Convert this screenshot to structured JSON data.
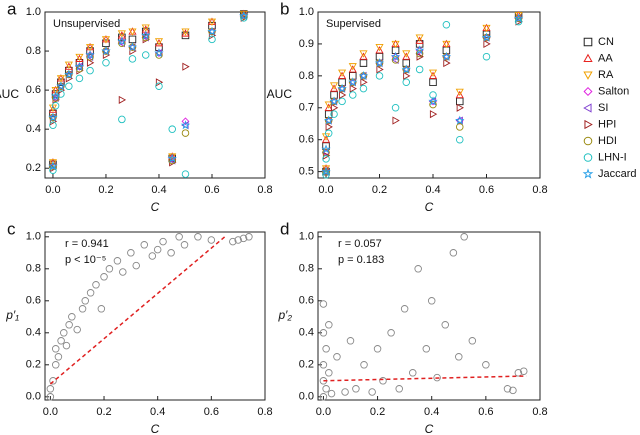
{
  "chart_data": [
    {
      "type": "scatter",
      "panel_label": "a",
      "annotations": [
        "Unsupervised"
      ],
      "xlabel": "C",
      "ylabel": "AUC",
      "xlim": [
        -0.03,
        0.8
      ],
      "ylim": [
        0.15,
        1.0
      ],
      "xticks": [
        {
          "value": 0,
          "label": "0.0"
        },
        0.2,
        0.4,
        0.6,
        0.8
      ],
      "yticks": [
        0.2,
        0.4,
        0.6,
        0.8,
        {
          "value": 1,
          "label": "1.0"
        }
      ],
      "x": [
        0.0,
        0.0,
        0.01,
        0.03,
        0.06,
        0.1,
        0.14,
        0.2,
        0.26,
        0.3,
        0.35,
        0.4,
        0.45,
        0.5,
        0.6,
        0.72
      ],
      "series": [
        {
          "color": "#222222",
          "marker": "square",
          "values": [
            0.22,
            0.48,
            0.58,
            0.64,
            0.7,
            0.74,
            0.8,
            0.84,
            0.87,
            0.86,
            0.9,
            0.82,
            0.25,
            0.88,
            0.93,
            0.99
          ]
        },
        {
          "color": "#e8231f",
          "marker": "triangle-up",
          "values": [
            0.23,
            0.5,
            0.6,
            0.66,
            0.72,
            0.76,
            0.82,
            0.86,
            0.88,
            0.9,
            0.91,
            0.84,
            0.26,
            0.89,
            0.95,
            0.99
          ]
        },
        {
          "color": "#f0a000",
          "marker": "triangle-down",
          "values": [
            0.23,
            0.51,
            0.6,
            0.66,
            0.73,
            0.77,
            0.82,
            0.86,
            0.89,
            0.9,
            0.92,
            0.85,
            0.26,
            0.9,
            0.95,
            0.99
          ]
        },
        {
          "color": "#e020e0",
          "marker": "diamond",
          "values": [
            0.21,
            0.46,
            0.56,
            0.62,
            0.68,
            0.72,
            0.78,
            0.8,
            0.85,
            0.82,
            0.88,
            0.79,
            0.25,
            0.44,
            0.9,
            0.98
          ]
        },
        {
          "color": "#8040d0",
          "marker": "triangle-left",
          "values": [
            0.21,
            0.46,
            0.56,
            0.62,
            0.68,
            0.72,
            0.77,
            0.8,
            0.84,
            0.82,
            0.87,
            0.79,
            0.24,
            0.42,
            0.9,
            0.98
          ]
        },
        {
          "color": "#a02020",
          "marker": "triangle-right",
          "values": [
            0.2,
            0.44,
            0.55,
            0.6,
            0.66,
            0.7,
            0.74,
            0.78,
            0.55,
            0.8,
            0.86,
            0.64,
            0.23,
            0.72,
            0.88,
            0.97
          ]
        },
        {
          "color": "#9a8a10",
          "marker": "circle",
          "values": [
            0.21,
            0.46,
            0.56,
            0.62,
            0.68,
            0.71,
            0.77,
            0.8,
            0.84,
            0.82,
            0.87,
            0.78,
            0.24,
            0.38,
            0.9,
            0.98
          ]
        },
        {
          "color": "#20c0c0",
          "marker": "circle",
          "values": [
            0.19,
            0.42,
            0.52,
            0.58,
            0.62,
            0.66,
            0.7,
            0.74,
            0.45,
            0.76,
            0.78,
            0.62,
            0.4,
            0.17,
            0.86,
            0.97
          ]
        },
        {
          "color": "#2aa0e8",
          "marker": "star",
          "values": [
            0.21,
            0.46,
            0.57,
            0.62,
            0.68,
            0.72,
            0.78,
            0.8,
            0.85,
            0.82,
            0.88,
            0.79,
            0.25,
            0.42,
            0.9,
            0.98
          ]
        }
      ]
    },
    {
      "type": "scatter",
      "panel_label": "b",
      "annotations": [
        "Supervised"
      ],
      "xlabel": "C",
      "ylabel": "AUC",
      "legend": "outside-right",
      "xlim": [
        -0.03,
        0.8
      ],
      "ylim": [
        0.48,
        1.0
      ],
      "xticks": [
        {
          "value": 0,
          "label": "0.0"
        },
        0.2,
        0.4,
        0.6,
        0.8
      ],
      "yticks": [
        0.5,
        0.6,
        0.7,
        0.8,
        0.9,
        {
          "value": 1,
          "label": "1.0"
        }
      ],
      "x": [
        0.0,
        0.0,
        0.01,
        0.03,
        0.06,
        0.1,
        0.14,
        0.2,
        0.26,
        0.3,
        0.35,
        0.4,
        0.45,
        0.5,
        0.6,
        0.72
      ],
      "series": [
        {
          "name": "CN",
          "color": "#222222",
          "marker": "square",
          "values": [
            0.5,
            0.58,
            0.68,
            0.74,
            0.78,
            0.8,
            0.84,
            0.86,
            0.88,
            0.84,
            0.9,
            0.78,
            0.88,
            0.72,
            0.93,
            0.99
          ]
        },
        {
          "name": "AA",
          "color": "#e8231f",
          "marker": "triangle-up",
          "values": [
            0.51,
            0.6,
            0.7,
            0.76,
            0.8,
            0.82,
            0.86,
            0.88,
            0.9,
            0.86,
            0.91,
            0.8,
            0.9,
            0.74,
            0.95,
            0.99
          ]
        },
        {
          "name": "RA",
          "color": "#f0a000",
          "marker": "triangle-down",
          "values": [
            0.51,
            0.61,
            0.71,
            0.77,
            0.81,
            0.83,
            0.87,
            0.89,
            0.9,
            0.87,
            0.92,
            0.81,
            0.9,
            0.75,
            0.95,
            0.99
          ]
        },
        {
          "name": "Salton",
          "color": "#e020e0",
          "marker": "diamond",
          "values": [
            0.5,
            0.56,
            0.66,
            0.72,
            0.76,
            0.78,
            0.8,
            0.84,
            0.86,
            0.82,
            0.88,
            0.72,
            0.86,
            0.66,
            0.92,
            0.98
          ]
        },
        {
          "name": "SI",
          "color": "#8040d0",
          "marker": "triangle-left",
          "values": [
            0.5,
            0.56,
            0.66,
            0.72,
            0.76,
            0.78,
            0.8,
            0.84,
            0.85,
            0.82,
            0.87,
            0.72,
            0.86,
            0.66,
            0.92,
            0.98
          ]
        },
        {
          "name": "HPI",
          "color": "#a02020",
          "marker": "triangle-right",
          "values": [
            0.5,
            0.55,
            0.64,
            0.7,
            0.74,
            0.76,
            0.78,
            0.82,
            0.66,
            0.8,
            0.86,
            0.68,
            0.84,
            0.7,
            0.9,
            0.97
          ]
        },
        {
          "name": "HDI",
          "color": "#9a8a10",
          "marker": "circle",
          "values": [
            0.5,
            0.56,
            0.66,
            0.72,
            0.76,
            0.78,
            0.8,
            0.84,
            0.85,
            0.82,
            0.87,
            0.71,
            0.86,
            0.64,
            0.92,
            0.98
          ]
        },
        {
          "name": "LHN-I",
          "color": "#20c0c0",
          "marker": "circle",
          "values": [
            0.49,
            0.54,
            0.62,
            0.68,
            0.72,
            0.74,
            0.76,
            0.8,
            0.7,
            0.78,
            0.82,
            0.74,
            0.96,
            0.6,
            0.86,
            0.97
          ]
        },
        {
          "name": "Jaccard",
          "color": "#2aa0e8",
          "marker": "star",
          "values": [
            0.5,
            0.57,
            0.66,
            0.72,
            0.76,
            0.78,
            0.8,
            0.84,
            0.86,
            0.82,
            0.88,
            0.72,
            0.86,
            0.66,
            0.92,
            0.98
          ]
        }
      ]
    },
    {
      "type": "scatter",
      "panel_label": "c",
      "annotations": [
        "r = 0.941",
        "p < 10⁻⁵"
      ],
      "xlabel": "C",
      "ylabel": "p′₁",
      "xlim": [
        -0.02,
        0.8
      ],
      "ylim": [
        -0.02,
        1.03
      ],
      "xticks": [
        {
          "value": 0,
          "label": "0.0"
        },
        0.2,
        0.4,
        0.6,
        0.8
      ],
      "yticks": [
        {
          "value": 0,
          "label": "0.0"
        },
        0.2,
        0.4,
        0.6,
        0.8,
        {
          "value": 1,
          "label": "1.0"
        }
      ],
      "series": [
        {
          "color": "#888888",
          "marker": "circle",
          "x": [
            0,
            0,
            0.01,
            0.02,
            0.02,
            0.03,
            0.04,
            0.05,
            0.06,
            0.07,
            0.08,
            0.1,
            0.12,
            0.13,
            0.15,
            0.17,
            0.19,
            0.2,
            0.22,
            0.25,
            0.27,
            0.3,
            0.32,
            0.35,
            0.38,
            0.4,
            0.42,
            0.45,
            0.48,
            0.5,
            0.55,
            0.6,
            0.68,
            0.7,
            0.72,
            0.74
          ],
          "values": [
            0.0,
            0.05,
            0.1,
            0.2,
            0.3,
            0.25,
            0.35,
            0.4,
            0.32,
            0.45,
            0.5,
            0.42,
            0.55,
            0.6,
            0.65,
            0.7,
            0.55,
            0.75,
            0.8,
            0.85,
            0.78,
            0.9,
            0.82,
            0.95,
            0.88,
            0.92,
            0.97,
            0.9,
            1.0,
            0.95,
            1.0,
            0.98,
            0.97,
            0.98,
            0.99,
            1.0
          ]
        }
      ],
      "trend": {
        "color": "#e02020",
        "x": [
          0,
          0.65
        ],
        "y": [
          0.08,
          1.0
        ]
      }
    },
    {
      "type": "scatter",
      "panel_label": "d",
      "annotations": [
        "r = 0.057",
        "p = 0.183"
      ],
      "xlabel": "C",
      "ylabel": "p′₂",
      "xlim": [
        -0.02,
        0.8
      ],
      "ylim": [
        -0.02,
        1.03
      ],
      "xticks": [
        {
          "value": 0,
          "label": "0.0"
        },
        0.2,
        0.4,
        0.6,
        0.8
      ],
      "yticks": [
        {
          "value": 0,
          "label": "0.0"
        },
        0.2,
        0.4,
        0.6,
        0.8,
        {
          "value": 1,
          "label": "1.0"
        }
      ],
      "series": [
        {
          "color": "#888888",
          "marker": "circle",
          "x": [
            0,
            0,
            0,
            0,
            0,
            0.01,
            0.01,
            0.02,
            0.02,
            0.03,
            0.05,
            0.08,
            0.1,
            0.12,
            0.15,
            0.18,
            0.2,
            0.22,
            0.25,
            0.28,
            0.3,
            0.33,
            0.35,
            0.38,
            0.4,
            0.42,
            0.45,
            0.48,
            0.5,
            0.52,
            0.55,
            0.6,
            0.68,
            0.7,
            0.72,
            0.74
          ],
          "values": [
            0.0,
            0.1,
            0.2,
            0.4,
            0.58,
            0.05,
            0.3,
            0.15,
            0.45,
            0.02,
            0.25,
            0.03,
            0.35,
            0.05,
            0.2,
            0.03,
            0.3,
            0.1,
            0.4,
            0.05,
            0.55,
            0.15,
            0.8,
            0.3,
            0.6,
            0.12,
            0.45,
            0.9,
            0.25,
            1.0,
            0.35,
            0.2,
            0.05,
            0.04,
            0.15,
            0.16
          ]
        }
      ],
      "trend": {
        "color": "#e02020",
        "x": [
          0,
          0.75
        ],
        "y": [
          0.1,
          0.13
        ]
      }
    }
  ]
}
